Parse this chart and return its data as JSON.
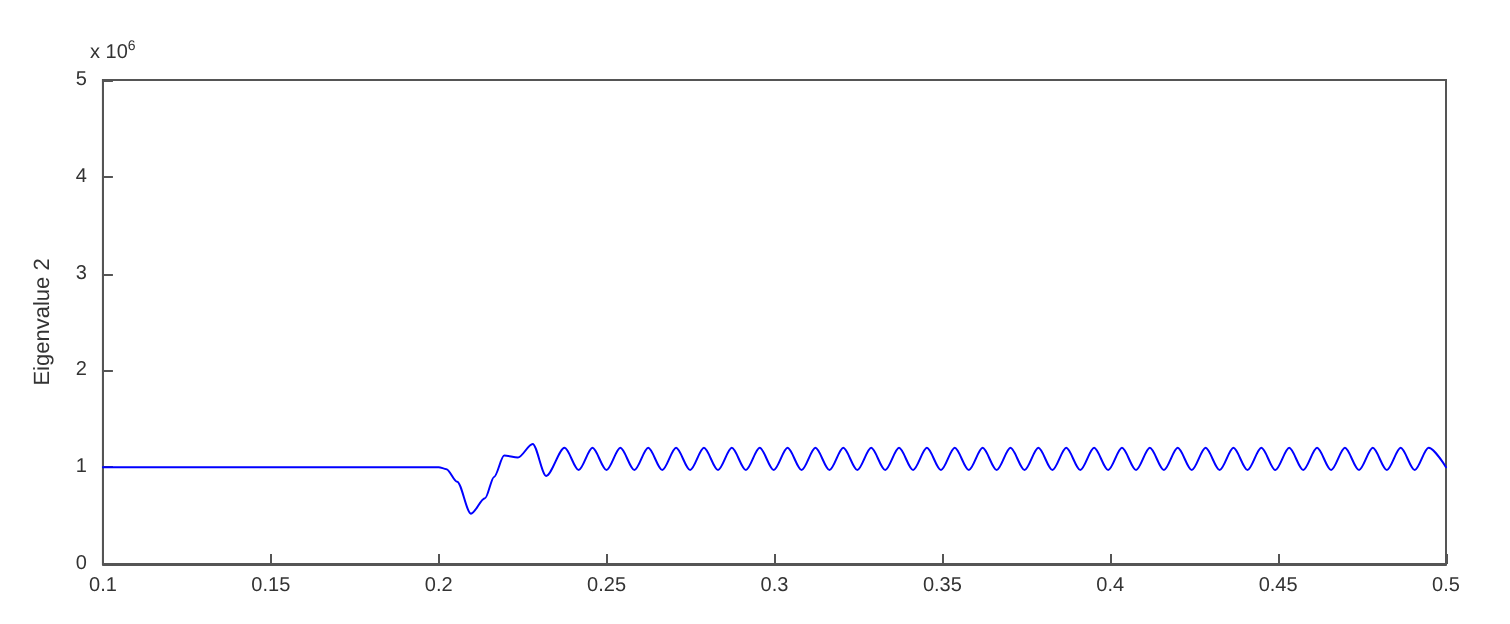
{
  "chart_data": {
    "type": "line",
    "ylabel": "Eigenvalue 2",
    "annotations": [
      "x 10$^{6}$"
    ],
    "xlim": [
      0.1,
      0.5
    ],
    "xticks": [
      0.1,
      0.15,
      0.2,
      0.25,
      0.3,
      0.35,
      0.4,
      0.45,
      0.5
    ],
    "ylim": [
      0,
      5
    ],
    "yticks": [
      0,
      1,
      2,
      3,
      4,
      5
    ],
    "grid": false,
    "marker": "none",
    "line_style": "solid",
    "series": [
      {
        "color": "#0000ff",
        "x": [
          0.1,
          0.15,
          0.2,
          0.2023,
          0.2055,
          0.2096,
          0.2138,
          0.2165,
          0.2195,
          0.2236,
          0.228,
          0.232,
          0.2375,
          0.2417,
          0.2458,
          0.25,
          0.2541,
          0.2583,
          0.2624,
          0.2666,
          0.2707,
          0.2749,
          0.279,
          0.2832,
          0.2873,
          0.2915,
          0.2956,
          0.2998,
          0.3039,
          0.3081,
          0.3122,
          0.3164,
          0.3205,
          0.3247,
          0.3288,
          0.333,
          0.3371,
          0.3413,
          0.3454,
          0.3496,
          0.3537,
          0.3579,
          0.362,
          0.3662,
          0.3703,
          0.3745,
          0.3786,
          0.3828,
          0.3869,
          0.3911,
          0.3952,
          0.3994,
          0.4035,
          0.4077,
          0.4118,
          0.416,
          0.4201,
          0.4243,
          0.4284,
          0.4326,
          0.4367,
          0.4409,
          0.445,
          0.4492,
          0.4533,
          0.4575,
          0.4616,
          0.4658,
          0.4699,
          0.4741,
          0.4782,
          0.4824,
          0.4865,
          0.4907,
          0.4948,
          0.5
        ],
        "values": [
          1.0,
          1.0,
          1.0,
          0.98,
          0.85,
          0.52,
          0.68,
          0.9,
          1.12,
          1.1,
          1.24,
          0.91,
          1.2,
          0.97,
          1.2,
          0.97,
          1.2,
          0.97,
          1.2,
          0.97,
          1.2,
          0.97,
          1.2,
          0.97,
          1.2,
          0.97,
          1.2,
          0.97,
          1.2,
          0.97,
          1.2,
          0.97,
          1.2,
          0.97,
          1.2,
          0.97,
          1.2,
          0.97,
          1.2,
          0.97,
          1.2,
          0.97,
          1.2,
          0.97,
          1.2,
          0.97,
          1.2,
          0.97,
          1.2,
          0.97,
          1.2,
          0.97,
          1.2,
          0.97,
          1.2,
          0.97,
          1.2,
          0.97,
          1.2,
          0.97,
          1.2,
          0.97,
          1.2,
          0.97,
          1.2,
          0.97,
          1.2,
          0.97,
          1.2,
          0.97,
          1.2,
          0.97,
          1.2,
          0.97,
          1.2,
          1.0
        ]
      }
    ]
  }
}
